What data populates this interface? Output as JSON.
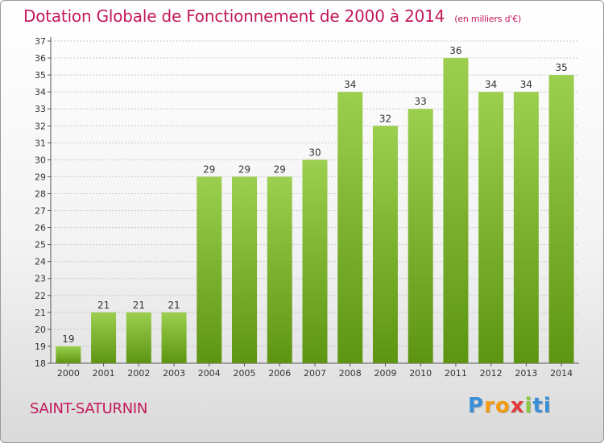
{
  "title": "Dotation Globale de Fonctionnement de 2000 à 2014",
  "subtitle": "(en milliers d'€)",
  "place": "SAINT-SATURNIN",
  "logo": {
    "letters": [
      "P",
      "r",
      "o",
      "x",
      "i",
      "t",
      "i"
    ],
    "colors": [
      "#3a8fd6",
      "#f39c12",
      "#f39c12",
      "#e23a3a",
      "#8cc63f",
      "#3a8fd6",
      "#3a8fd6"
    ]
  },
  "colors": {
    "title": "#c2185b",
    "bar_light": "#9ccf4f",
    "bar_dark": "#5d9512",
    "grid": "#c8c8c8"
  },
  "chart_data": {
    "type": "bar",
    "title": "Dotation Globale de Fonctionnement de 2000 à 2014",
    "xlabel": "",
    "ylabel": "",
    "categories": [
      "2000",
      "2001",
      "2002",
      "2003",
      "2004",
      "2005",
      "2006",
      "2007",
      "2008",
      "2009",
      "2010",
      "2011",
      "2012",
      "2013",
      "2014"
    ],
    "values": [
      19,
      21,
      21,
      21,
      29,
      29,
      29,
      30,
      34,
      32,
      33,
      36,
      34,
      34,
      35
    ],
    "ylim": [
      18,
      37
    ],
    "yticks": [
      18,
      19,
      20,
      21,
      22,
      23,
      24,
      25,
      26,
      27,
      28,
      29,
      30,
      31,
      32,
      33,
      34,
      35,
      36,
      37
    ],
    "grid": true
  }
}
